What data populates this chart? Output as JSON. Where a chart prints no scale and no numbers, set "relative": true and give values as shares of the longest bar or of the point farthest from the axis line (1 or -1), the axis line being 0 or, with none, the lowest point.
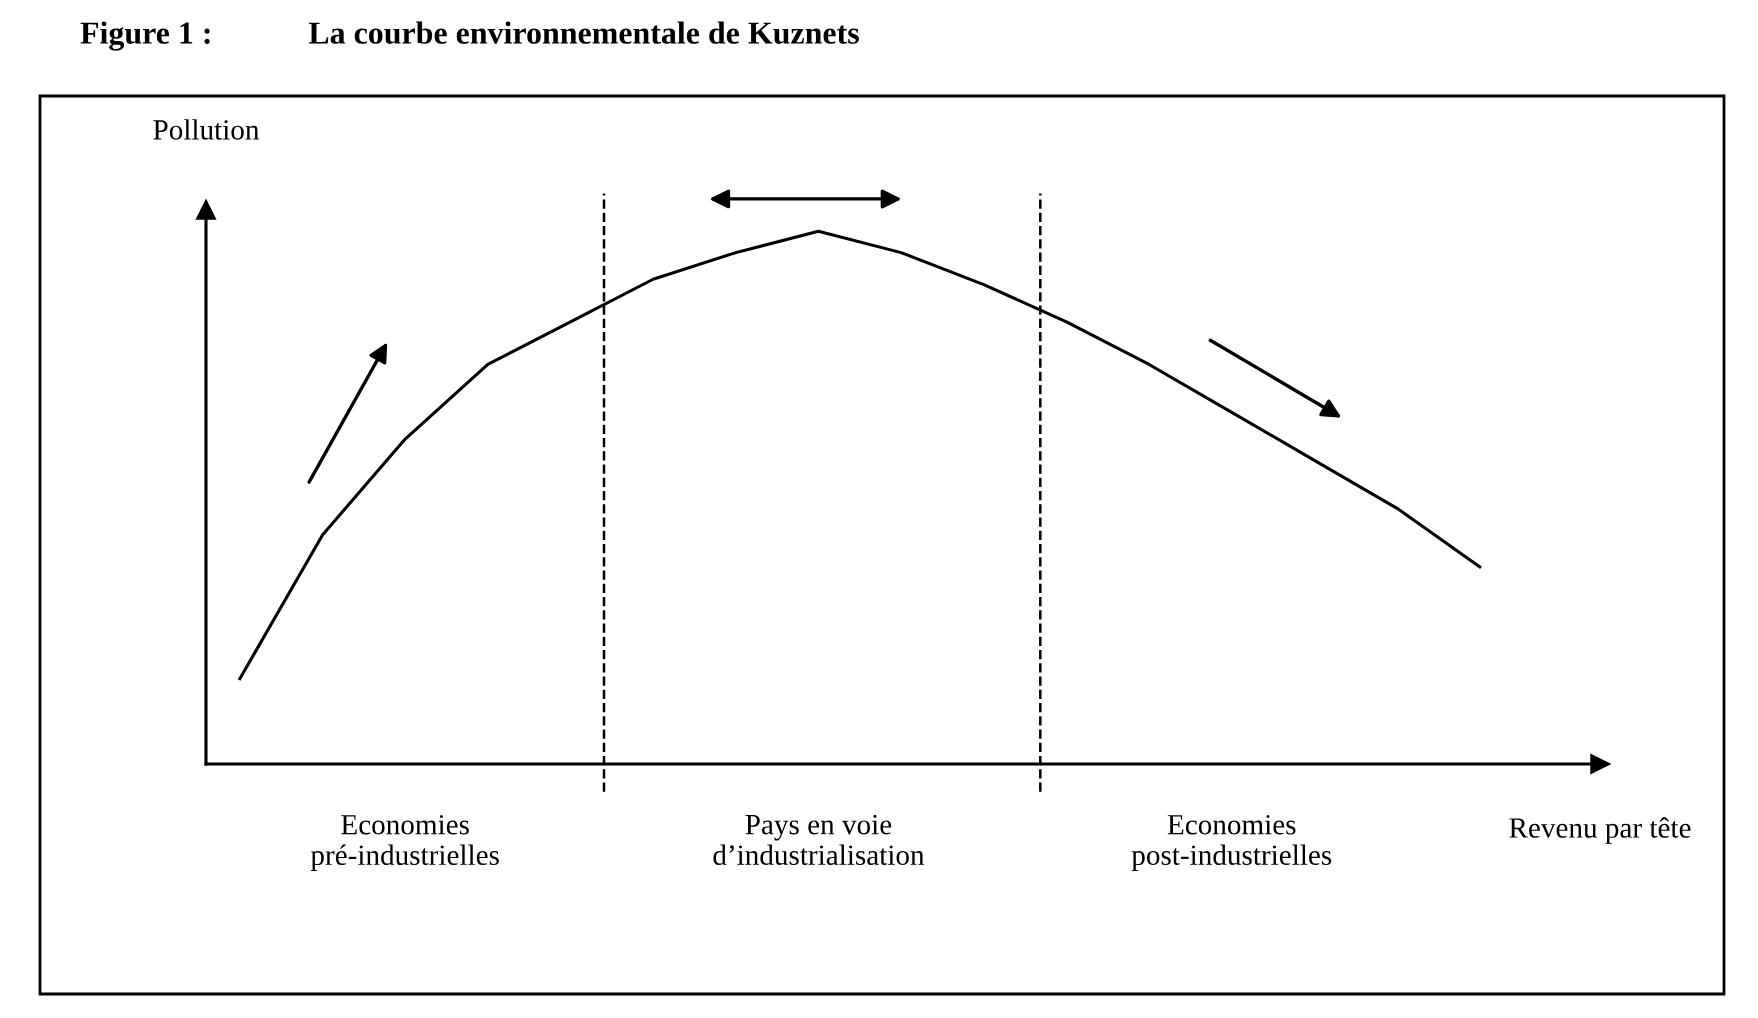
{
  "chart_data": {
    "type": "line",
    "title": "Figure 1 :            La courbe environnementale de Kuznets",
    "xlabel": "Revenu par tête",
    "ylabel": "Pollution",
    "relative": true,
    "categories": [
      null,
      null,
      "Economies\npré-industrielles",
      null,
      null,
      null,
      null,
      "Pays en voie\nd’industrialisation",
      null,
      null,
      null,
      null,
      "Economies\npost-industrielles",
      null,
      null,
      null
    ],
    "series": [
      {
        "color": "#000000",
        "values": [
          0.16,
          0.43,
          0.61,
          0.75,
          0.83,
          0.91,
          0.96,
          1.0,
          0.96,
          0.9,
          0.83,
          0.75,
          0.66,
          0.57,
          0.48,
          0.37
        ]
      }
    ],
    "grid": false,
    "legend": false,
    "marker": "none",
    "line_style": "solid"
  }
}
